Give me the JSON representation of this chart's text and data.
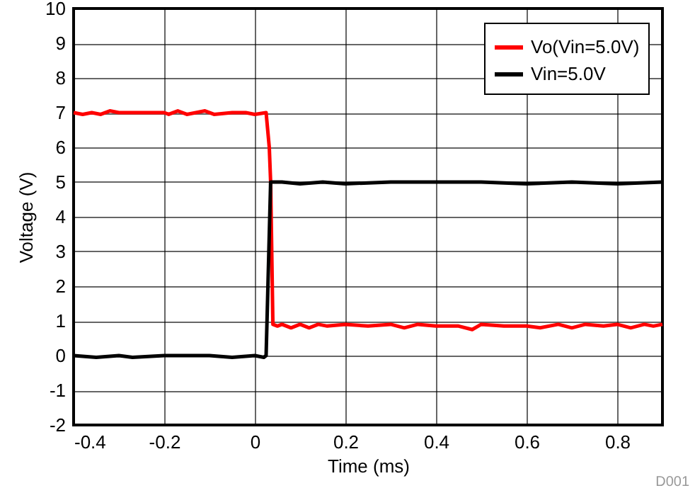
{
  "chart_data": {
    "type": "line",
    "xlabel": "Time (ms)",
    "ylabel": "Voltage (V)",
    "xlim": [
      -0.4,
      0.9
    ],
    "xticks": [
      -0.4,
      -0.2,
      0,
      0.2,
      0.4,
      0.6,
      0.8
    ],
    "ylim": [
      -2,
      10
    ],
    "yticks": [
      -2,
      -1,
      0,
      1,
      2,
      3,
      4,
      5,
      6,
      7,
      8,
      9,
      10
    ],
    "grid": true,
    "legend": "top right",
    "line_style": "solid",
    "annotations": [
      "D001"
    ],
    "series": [
      {
        "name": "Vo(Vin=5.0V)",
        "color": "#ff0000",
        "x": [
          -0.4,
          -0.38,
          -0.36,
          -0.34,
          -0.32,
          -0.3,
          -0.25,
          -0.2,
          -0.19,
          -0.17,
          -0.15,
          -0.13,
          -0.11,
          -0.09,
          -0.05,
          -0.02,
          0,
          0.025,
          0.032,
          0.035,
          0.04,
          0.05,
          0.06,
          0.08,
          0.1,
          0.12,
          0.14,
          0.16,
          0.2,
          0.25,
          0.3,
          0.33,
          0.36,
          0.4,
          0.45,
          0.48,
          0.5,
          0.55,
          0.6,
          0.63,
          0.67,
          0.7,
          0.73,
          0.77,
          0.8,
          0.83,
          0.86,
          0.88,
          0.9
        ],
        "values": [
          7.0,
          6.95,
          7.0,
          6.95,
          7.05,
          7.0,
          7.0,
          7.0,
          6.95,
          7.05,
          6.95,
          7.0,
          7.05,
          6.95,
          7.0,
          7.0,
          6.95,
          7.0,
          6.0,
          5.0,
          0.9,
          0.85,
          0.9,
          0.8,
          0.9,
          0.8,
          0.9,
          0.85,
          0.9,
          0.85,
          0.9,
          0.8,
          0.9,
          0.85,
          0.85,
          0.75,
          0.9,
          0.85,
          0.85,
          0.8,
          0.9,
          0.8,
          0.9,
          0.85,
          0.9,
          0.8,
          0.9,
          0.85,
          0.9
        ]
      },
      {
        "name": "Vin=5.0V",
        "color": "#000000",
        "x": [
          -0.4,
          -0.35,
          -0.3,
          -0.27,
          -0.2,
          -0.1,
          -0.05,
          0,
          0.02,
          0.025,
          0.035,
          0.06,
          0.1,
          0.15,
          0.2,
          0.3,
          0.5,
          0.6,
          0.7,
          0.8,
          0.9
        ],
        "values": [
          0,
          -0.05,
          0,
          -0.05,
          0,
          0,
          -0.05,
          0,
          -0.05,
          0,
          5.0,
          5.0,
          4.95,
          5.0,
          4.95,
          5.0,
          5.0,
          4.95,
          5.0,
          4.95,
          5.0
        ]
      }
    ]
  }
}
